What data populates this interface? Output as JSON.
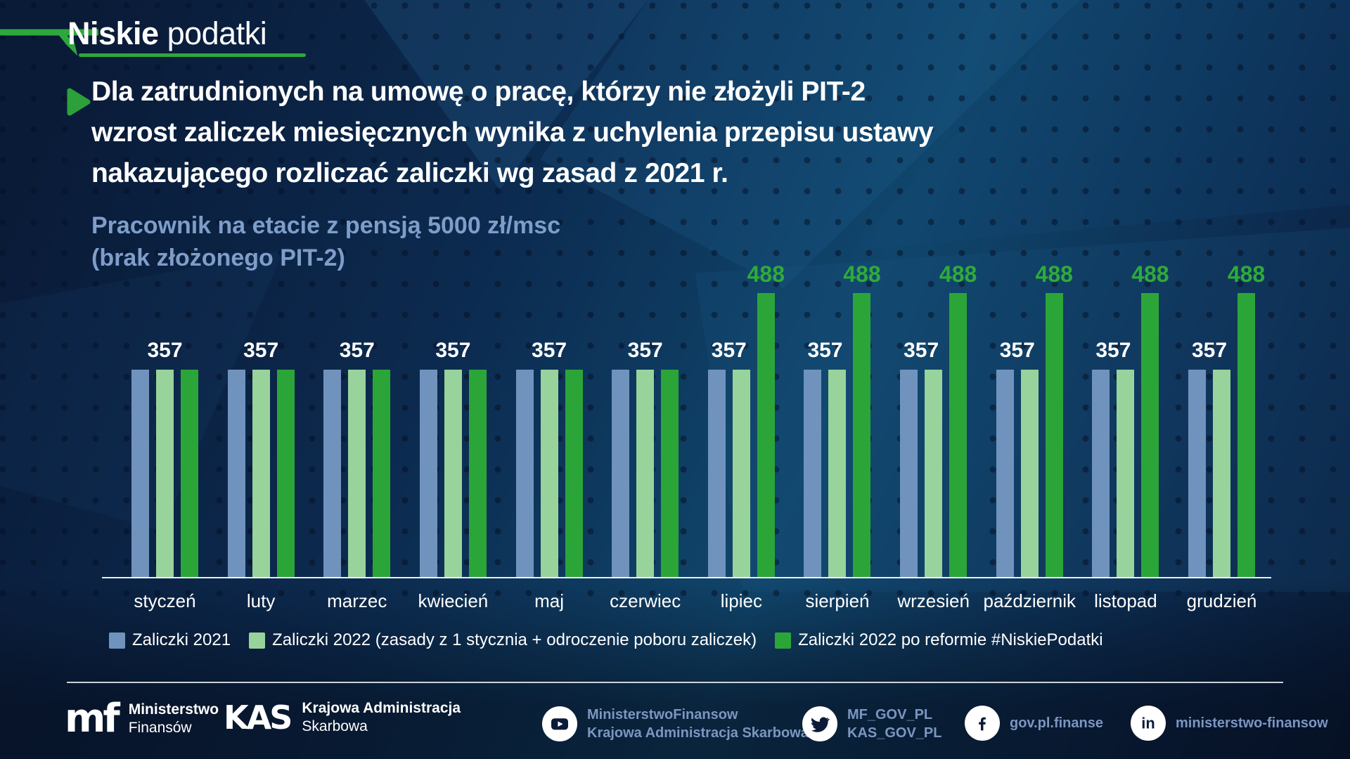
{
  "logo": {
    "brand_bold": "Niskie",
    "brand_light": "podatki"
  },
  "title": {
    "line1": "Dla zatrudnionych na umowę o pracę, którzy nie złożyli PIT-2",
    "line2": "wzrost zaliczek miesięcznych wynika z uchylenia przepisu ustawy",
    "line3": "nakazującego rozliczać zaliczki wg zasad z 2021 r."
  },
  "subtitle": {
    "line1": "Pracownik na etacie z pensją 5000 zł/msc",
    "line2": "(brak złożonego PIT-2)"
  },
  "chart_data": {
    "type": "bar",
    "categories": [
      "styczeń",
      "luty",
      "marzec",
      "kwiecień",
      "maj",
      "czerwiec",
      "lipiec",
      "sierpień",
      "wrzesień",
      "październik",
      "listopad",
      "grudzień"
    ],
    "series": [
      {
        "name": "Zaliczki 2021",
        "color": "#7093BE",
        "values": [
          357,
          357,
          357,
          357,
          357,
          357,
          357,
          357,
          357,
          357,
          357,
          357
        ]
      },
      {
        "name": "Zaliczki 2022 (zasady z 1 stycznia + odroczenie poboru zaliczek)",
        "color": "#98D39B",
        "values": [
          357,
          357,
          357,
          357,
          357,
          357,
          357,
          357,
          357,
          357,
          357,
          357
        ]
      },
      {
        "name": "Zaliczki 2022 po reformie #NiskiePodatki",
        "color": "#2BA538",
        "values": [
          357,
          357,
          357,
          357,
          357,
          357,
          488,
          488,
          488,
          488,
          488,
          488
        ]
      }
    ],
    "value_label_color_default": "#FFFFFF",
    "value_label_color_highlight": "#2FAA3B",
    "ylim": [
      0,
      520
    ],
    "grid": false,
    "legend_position": "bottom",
    "title": "",
    "xlabel": "",
    "ylabel": ""
  },
  "footer": {
    "mf": {
      "logo_text": "mf",
      "line1": "Ministerstwo",
      "line2": "Finansów"
    },
    "kas": {
      "logo_text": "KAS",
      "line1": "Krajowa Administracja",
      "line2": "Skarbowa"
    },
    "social": [
      {
        "icon": "youtube-icon",
        "line1": "MinisterstwoFinansow",
        "line2": "Krajowa Administracja Skarbowa"
      },
      {
        "icon": "twitter-icon",
        "line1": "MF_GOV_PL",
        "line2": "KAS_GOV_PL"
      },
      {
        "icon": "facebook-icon",
        "line1": "gov.pl.finanse",
        "line2": ""
      },
      {
        "icon": "linkedin-icon",
        "line1": "ministerstwo-finansow",
        "line2": ""
      }
    ]
  },
  "colors": {
    "accent_green": "#2EA83C",
    "background_navy": "#0A1B38",
    "subtitle_blue": "#7E9DC9",
    "social_text_blue": "#7C96C2"
  }
}
